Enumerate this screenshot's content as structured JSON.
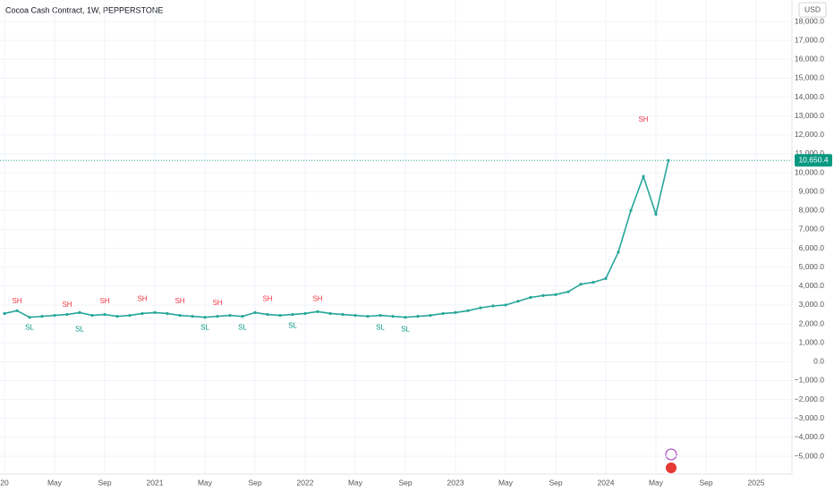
{
  "chart_data": {
    "type": "line",
    "title": "Cocoa Cash Contract, 1W, PEPPERSTONE",
    "currency": "USD",
    "categories": [
      "20",
      null,
      null,
      null,
      "May",
      null,
      null,
      null,
      "Sep",
      null,
      null,
      null,
      "2021",
      null,
      null,
      null,
      "May",
      null,
      null,
      null,
      "Sep",
      null,
      null,
      null,
      "2022",
      null,
      null,
      null,
      "May",
      null,
      null,
      null,
      "Sep",
      null,
      null,
      null,
      "2023",
      null,
      null,
      null,
      "May",
      null,
      null,
      null,
      "Sep",
      null,
      null,
      null,
      "2024",
      null,
      null,
      null,
      "May",
      null,
      null,
      null,
      "Sep",
      null,
      null,
      null,
      "2025"
    ],
    "values": [
      2550,
      2700,
      2350,
      2400,
      2450,
      2500,
      2600,
      2450,
      2500,
      2400,
      2450,
      2550,
      2600,
      2550,
      2450,
      2400,
      2350,
      2400,
      2450,
      2400,
      2600,
      2500,
      2450,
      2500,
      2550,
      2650,
      2550,
      2500,
      2450,
      2400,
      2450,
      2400,
      2350,
      2400,
      2450,
      2550,
      2600,
      2700,
      2850,
      2950,
      3000,
      3200,
      3400,
      3500,
      3550,
      3700,
      4100,
      4200,
      4400,
      5800,
      8000,
      9800,
      7800,
      10650.4,
      null,
      null,
      null,
      null,
      null,
      null,
      null
    ],
    "color": "#26a69a",
    "last_price": {
      "value": 10650.4,
      "label": "10,650.4"
    },
    "annotations": [
      {
        "text": "SH",
        "index": 1,
        "value": 3200
      },
      {
        "text": "SL",
        "index": 2,
        "value": 1800
      },
      {
        "text": "SH",
        "index": 5,
        "value": 3000
      },
      {
        "text": "SL",
        "index": 6,
        "value": 1700
      },
      {
        "text": "SH",
        "index": 8,
        "value": 3200
      },
      {
        "text": "SH",
        "index": 11,
        "value": 3300
      },
      {
        "text": "SH",
        "index": 14,
        "value": 3200
      },
      {
        "text": "SL",
        "index": 16,
        "value": 1800
      },
      {
        "text": "SH",
        "index": 17,
        "value": 3100
      },
      {
        "text": "SL",
        "index": 19,
        "value": 1800
      },
      {
        "text": "SH",
        "index": 21,
        "value": 3300
      },
      {
        "text": "SL",
        "index": 23,
        "value": 1900
      },
      {
        "text": "SH",
        "index": 25,
        "value": 3300
      },
      {
        "text": "SL",
        "index": 30,
        "value": 1800
      },
      {
        "text": "SL",
        "index": 32,
        "value": 1700
      },
      {
        "text": "SH",
        "index": 51,
        "value": 12800
      }
    ],
    "ylim": [
      -5000,
      18000
    ],
    "yticks": [
      {
        "value": 18000,
        "label": "18,000.0"
      },
      {
        "value": 17000,
        "label": "17,000.0"
      },
      {
        "value": 16000,
        "label": "16,000.0"
      },
      {
        "value": 15000,
        "label": "15,000.0"
      },
      {
        "value": 14000,
        "label": "14,000.0"
      },
      {
        "value": 13000,
        "label": "13,000.0"
      },
      {
        "value": 12000,
        "label": "12,000.0"
      },
      {
        "value": 11000,
        "label": "11,000.0"
      },
      {
        "value": 10000,
        "label": "10,000.0"
      },
      {
        "value": 9000,
        "label": "9,000.0"
      },
      {
        "value": 8000,
        "label": "8,000.0"
      },
      {
        "value": 7000,
        "label": "7,000.0"
      },
      {
        "value": 6000,
        "label": "6,000.0"
      },
      {
        "value": 5000,
        "label": "5,000.0"
      },
      {
        "value": 4000,
        "label": "4,000.0"
      },
      {
        "value": 3000,
        "label": "3,000.0"
      },
      {
        "value": 2000,
        "label": "2,000.0"
      },
      {
        "value": 1000,
        "label": "1,000.0"
      },
      {
        "value": 0,
        "label": "0.0"
      },
      {
        "value": -1000,
        "label": "−1,000.0"
      },
      {
        "value": -2000,
        "label": "−2,000.0"
      },
      {
        "value": -3000,
        "label": "−3,000.0"
      },
      {
        "value": -4000,
        "label": "−4,000.0"
      },
      {
        "value": -5000,
        "label": "−5,000.0"
      }
    ],
    "grid": true
  }
}
